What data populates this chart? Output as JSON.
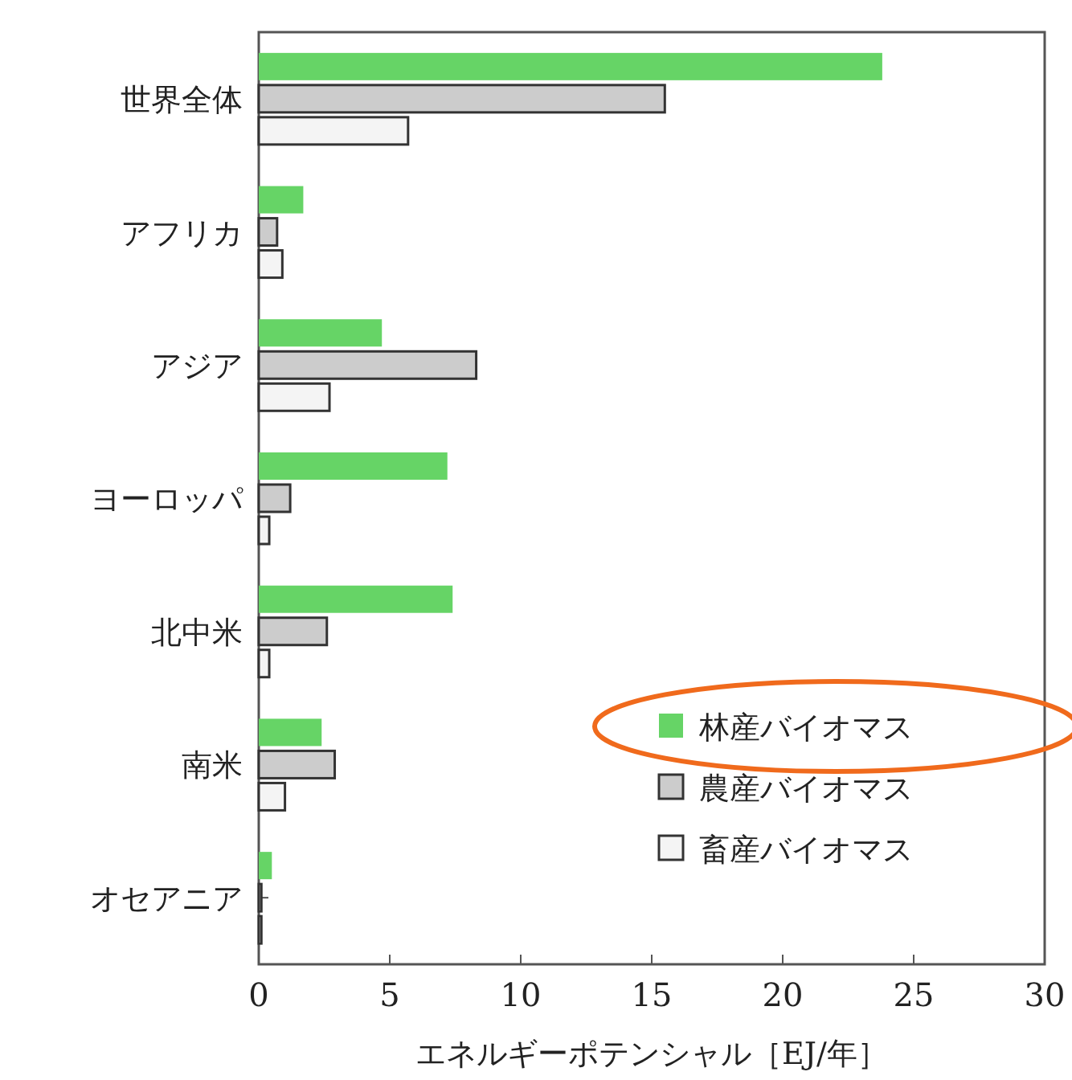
{
  "chart_data": {
    "type": "bar",
    "orientation": "horizontal",
    "xlabel": "エネルギーポテンシャル［EJ/年］",
    "categories": [
      "世界全体",
      "アフリカ",
      "アジア",
      "ヨーロッパ",
      "北中米",
      "南米",
      "オセアニア"
    ],
    "series": [
      {
        "name": "林産バイオマス",
        "color": "#66d466",
        "values": [
          23.8,
          1.7,
          4.7,
          7.2,
          7.4,
          2.4,
          0.5
        ]
      },
      {
        "name": "農産バイオマス",
        "color": "#cccccc",
        "values": [
          15.5,
          0.7,
          8.3,
          1.2,
          2.6,
          2.9,
          0.1
        ]
      },
      {
        "name": "畜産バイオマス",
        "color": "#f4f4f4",
        "values": [
          5.7,
          0.9,
          2.7,
          0.4,
          0.4,
          1.0,
          0.1
        ]
      }
    ],
    "xlim": [
      0,
      30
    ],
    "xticks": [
      0,
      5,
      10,
      15,
      20,
      25,
      30
    ],
    "legend": "bottom right"
  }
}
